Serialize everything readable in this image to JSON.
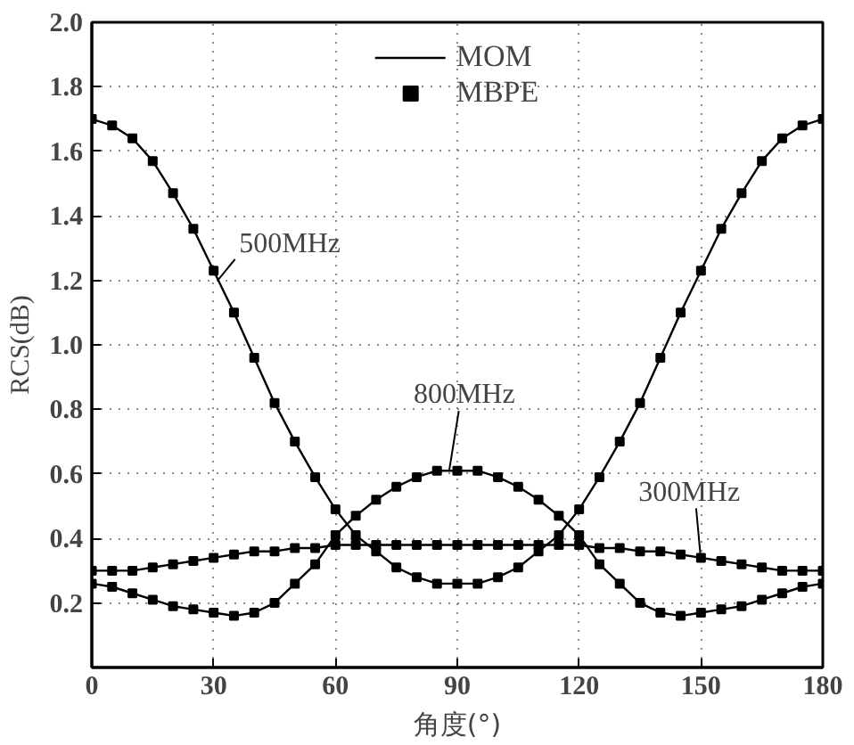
{
  "chart_data": {
    "type": "line",
    "xlabel": "角度(°)",
    "ylabel": "RCS(dB)",
    "x": [
      0,
      5,
      10,
      15,
      20,
      25,
      30,
      35,
      40,
      45,
      50,
      55,
      60,
      65,
      70,
      75,
      80,
      85,
      90,
      95,
      100,
      105,
      110,
      115,
      120,
      125,
      130,
      135,
      140,
      145,
      150,
      155,
      160,
      165,
      170,
      175,
      180
    ],
    "series": [
      {
        "name": "MOM",
        "color": "#000000",
        "marker": "none",
        "values": [
          1.7,
          1.68,
          1.64,
          1.57,
          1.47,
          1.36,
          1.23,
          1.1,
          0.96,
          0.82,
          0.7,
          0.59,
          0.49,
          0.41,
          0.36,
          0.31,
          0.28,
          0.26,
          0.26,
          0.26,
          0.28,
          0.31,
          0.36,
          0.41,
          0.49,
          0.59,
          0.7,
          0.82,
          0.96,
          1.1,
          1.23,
          1.36,
          1.47,
          1.57,
          1.64,
          1.68,
          1.7
        ]
      },
      {
        "color": "#000000",
        "marker": "none",
        "values": [
          0.26,
          0.25,
          0.23,
          0.21,
          0.19,
          0.18,
          0.17,
          0.16,
          0.17,
          0.2,
          0.26,
          0.32,
          0.41,
          0.47,
          0.52,
          0.56,
          0.59,
          0.61,
          0.61,
          0.61,
          0.59,
          0.56,
          0.52,
          0.47,
          0.41,
          0.32,
          0.26,
          0.2,
          0.17,
          0.16,
          0.17,
          0.18,
          0.19,
          0.21,
          0.23,
          0.25,
          0.26
        ]
      },
      {
        "color": "#000000",
        "marker": "none",
        "values": [
          0.3,
          0.3,
          0.3,
          0.31,
          0.32,
          0.33,
          0.34,
          0.35,
          0.36,
          0.36,
          0.37,
          0.37,
          0.38,
          0.38,
          0.38,
          0.38,
          0.38,
          0.38,
          0.38,
          0.38,
          0.38,
          0.38,
          0.38,
          0.38,
          0.38,
          0.37,
          0.37,
          0.36,
          0.36,
          0.35,
          0.34,
          0.33,
          0.32,
          0.31,
          0.3,
          0.3,
          0.3
        ]
      },
      {
        "name": "MBPE",
        "type": "scatter",
        "color": "#000000",
        "marker": "square",
        "values": [
          1.7,
          1.68,
          1.64,
          1.57,
          1.47,
          1.36,
          1.23,
          1.1,
          0.96,
          0.82,
          0.7,
          0.59,
          0.49,
          0.41,
          0.36,
          0.31,
          0.28,
          0.26,
          0.26,
          0.26,
          0.28,
          0.31,
          0.36,
          0.41,
          0.49,
          0.59,
          0.7,
          0.82,
          0.96,
          1.1,
          1.23,
          1.36,
          1.47,
          1.57,
          1.64,
          1.68,
          1.7
        ]
      },
      {
        "type": "scatter",
        "color": "#000000",
        "marker": "square",
        "values": [
          0.26,
          0.25,
          0.23,
          0.21,
          0.19,
          0.18,
          0.17,
          0.16,
          0.17,
          0.2,
          0.26,
          0.32,
          0.41,
          0.47,
          0.52,
          0.56,
          0.59,
          0.61,
          0.61,
          0.61,
          0.59,
          0.56,
          0.52,
          0.47,
          0.41,
          0.32,
          0.26,
          0.2,
          0.17,
          0.16,
          0.17,
          0.18,
          0.19,
          0.21,
          0.23,
          0.25,
          0.26
        ]
      },
      {
        "type": "scatter",
        "color": "#000000",
        "marker": "square",
        "values": [
          0.3,
          0.3,
          0.3,
          0.31,
          0.32,
          0.33,
          0.34,
          0.35,
          0.36,
          0.36,
          0.37,
          0.37,
          0.38,
          0.38,
          0.38,
          0.38,
          0.38,
          0.38,
          0.38,
          0.38,
          0.38,
          0.38,
          0.38,
          0.38,
          0.38,
          0.37,
          0.37,
          0.36,
          0.36,
          0.35,
          0.34,
          0.33,
          0.32,
          0.31,
          0.3,
          0.3,
          0.3
        ]
      }
    ],
    "annotations": [
      {
        "text": "500MHz",
        "x": 31,
        "y": 1.2
      },
      {
        "text": "800MHz",
        "x": 88,
        "y": 0.61
      },
      {
        "text": "300MHz",
        "x": 150,
        "y": 0.33
      }
    ],
    "xlim": [
      0,
      180
    ],
    "xticks": [
      0,
      30,
      60,
      90,
      120,
      150,
      180
    ],
    "ylim": [
      0,
      2.0
    ],
    "yticks": [
      {
        "value": 0,
        "label": null
      },
      0.2,
      0.4,
      0.6,
      0.8,
      {
        "value": 1,
        "label": "1.0"
      },
      1.2,
      1.4,
      1.6,
      1.8,
      {
        "value": 2,
        "label": "2.0"
      }
    ],
    "grid": true,
    "legend": "top",
    "line_style": "solid"
  }
}
